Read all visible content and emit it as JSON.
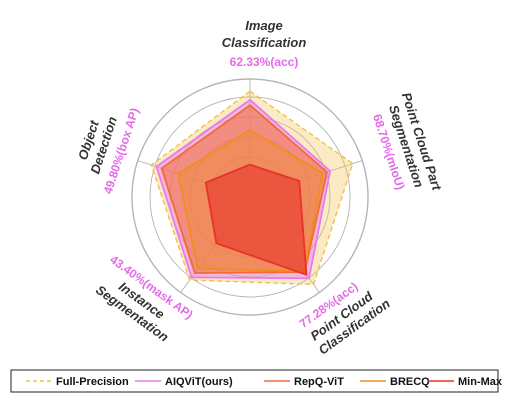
{
  "chart_data": {
    "type": "radar",
    "axes": [
      {
        "name_lines": [
          "Image",
          "Classification"
        ],
        "value_label": "62.33%(acc)"
      },
      {
        "name_lines": [
          "Point Cloud Part",
          "Segmentation"
        ],
        "value_label": "68.70%(mIoU)"
      },
      {
        "name_lines": [
          "Point Cloud",
          "Classification"
        ],
        "value_label": "77.28%(acc)"
      },
      {
        "name_lines": [
          "Instance",
          "Segmentation"
        ],
        "value_label": "43.40%(mask AP)"
      },
      {
        "name_lines": [
          "Object",
          "Detection"
        ],
        "value_label": "49.80%(box AP)"
      }
    ],
    "rlim": [
      0,
      1
    ],
    "grid": true,
    "legend_position": "bottom",
    "series": [
      {
        "name": "Full-Precision",
        "color": "#f2c04a",
        "dash": true,
        "values": [
          0.98,
          1.0,
          1.0,
          0.95,
          0.96
        ]
      },
      {
        "name": "AIQViT(ours)",
        "color": "#e879f0",
        "dash": false,
        "values": [
          0.9,
          0.78,
          0.93,
          0.92,
          0.91
        ]
      },
      {
        "name": "RepQ-ViT",
        "color": "#f06a3a",
        "dash": false,
        "values": [
          0.85,
          0.75,
          0.86,
          0.87,
          0.86
        ]
      },
      {
        "name": "BRECQ",
        "color": "#f28c1e",
        "dash": false,
        "values": [
          0.62,
          0.71,
          0.85,
          0.82,
          0.7
        ]
      },
      {
        "name": "Min-Max",
        "color": "#e8322a",
        "dash": false,
        "values": [
          0.3,
          0.48,
          0.89,
          0.53,
          0.43
        ]
      }
    ]
  }
}
